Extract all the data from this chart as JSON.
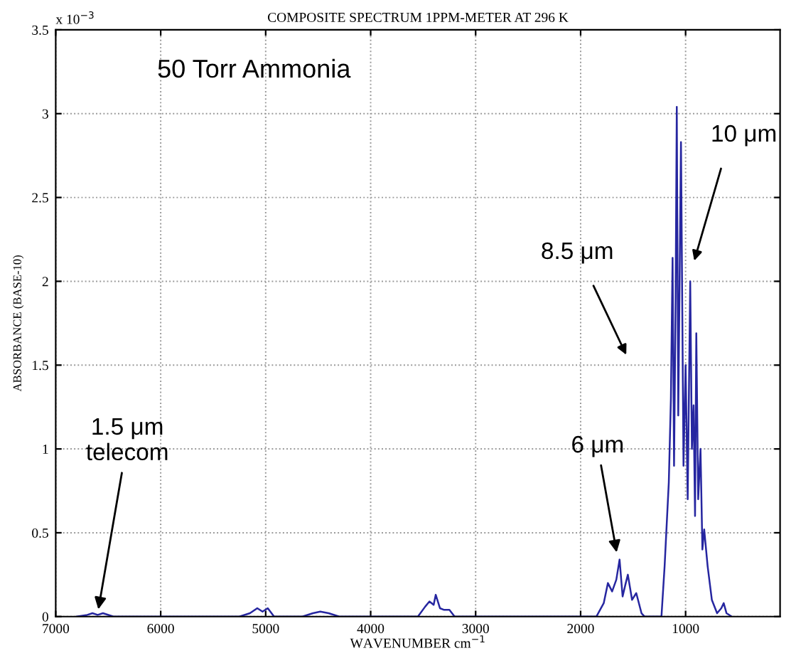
{
  "chart_data": {
    "type": "line",
    "title": "COMPOSITE SPECTRUM 1PPM-METER AT 296 K",
    "xlabel": "WAVENUMBER cm$^{−1}$",
    "ylabel": "ABSORBANCE (BASE-10)",
    "xlim": [
      7000,
      100
    ],
    "xticks": [
      7000,
      6000,
      5000,
      4000,
      3000,
      2000,
      1000
    ],
    "ylim": [
      0,
      3.5
    ],
    "yticks": [
      0,
      0.5,
      1,
      1.5,
      2,
      2.5,
      3,
      3.5
    ],
    "grid": true,
    "marker": "none",
    "line_style": "solid",
    "annotations": [
      "x 10$^{−3}$",
      "50 Torr Ammonia",
      {
        "text": "1.5 μm\ntelecom",
        "x": 6600,
        "y": 0.02
      },
      {
        "text": "6 μm",
        "x": 1650,
        "y": 0.36
      },
      "8.5 μm",
      "10 μm"
    ],
    "series": [
      {
        "color": "#2626a0",
        "x": [
          6800,
          6700,
          6650,
          6600,
          6550,
          6450,
          5250,
          5150,
          5080,
          5030,
          4980,
          4920,
          4650,
          4550,
          4480,
          4400,
          4300,
          3550,
          3480,
          3440,
          3400,
          3380,
          3340,
          3300,
          3250,
          3200,
          1850,
          1780,
          1740,
          1700,
          1660,
          1629,
          1600,
          1570,
          1550,
          1510,
          1470,
          1420,
          1390,
          1230,
          1200,
          1160,
          1140,
          1124,
          1110,
          1095,
          1084,
          1070,
          1044,
          1020,
          1000,
          980,
          956,
          940,
          924,
          910,
          898,
          880,
          858,
          840,
          823,
          790,
          750,
          700,
          660,
          637,
          610,
          560
        ],
        "values": [
          0,
          0.01,
          0.02,
          0.01,
          0.02,
          0,
          0,
          0.02,
          0.05,
          0.03,
          0.05,
          0,
          0,
          0.02,
          0.03,
          0.02,
          0,
          0,
          0.06,
          0.09,
          0.07,
          0.13,
          0.05,
          0.04,
          0.04,
          0,
          0,
          0.08,
          0.2,
          0.15,
          0.22,
          0.34,
          0.12,
          0.2,
          0.25,
          0.1,
          0.14,
          0.02,
          0,
          0,
          0.3,
          0.8,
          1.3,
          2.14,
          0.9,
          1.9,
          3.04,
          1.2,
          2.83,
          0.9,
          1.5,
          0.7,
          2.0,
          1.0,
          1.26,
          0.6,
          1.69,
          0.7,
          1.0,
          0.4,
          0.52,
          0.3,
          0.1,
          0.02,
          0.05,
          0.08,
          0.02,
          0
        ]
      }
    ]
  }
}
